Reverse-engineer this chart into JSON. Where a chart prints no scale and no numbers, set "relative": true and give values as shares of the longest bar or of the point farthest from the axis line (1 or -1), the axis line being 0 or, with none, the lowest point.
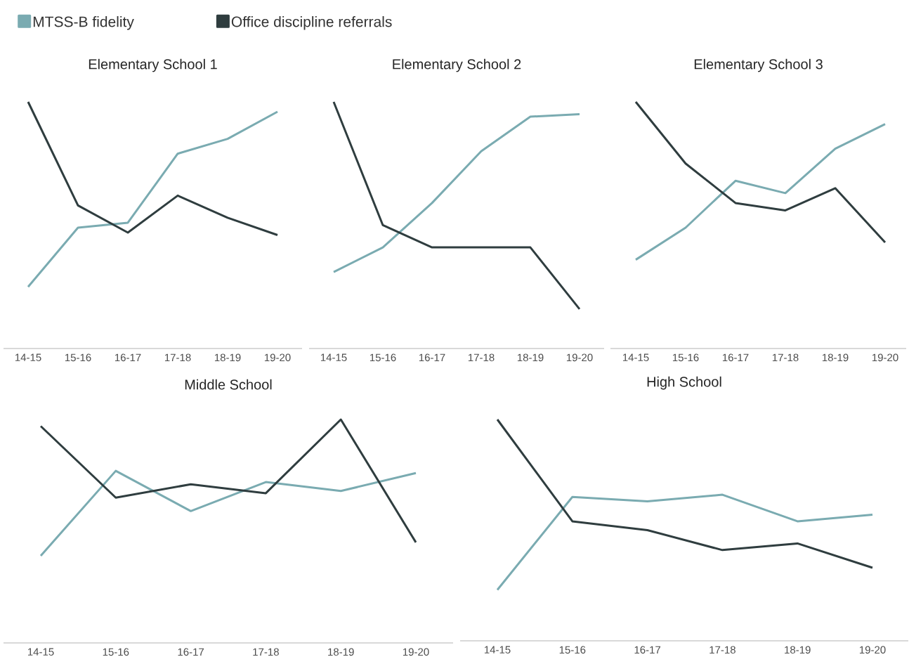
{
  "chart_data": [
    {
      "type": "line",
      "title": "Elementary School 1",
      "relative": true,
      "legend": "top",
      "categories": [
        "14-15",
        "15-16",
        "16-17",
        "17-18",
        "18-19",
        "19-20"
      ],
      "series": [
        {
          "name": "MTSS-B fidelity",
          "color": "#7aabb1",
          "values": [
            0.25,
            0.49,
            0.51,
            0.79,
            0.85,
            0.96
          ]
        },
        {
          "name": "Office discipline referrals",
          "color": "#2f3d3f",
          "values": [
            1,
            0.58,
            0.47,
            0.62,
            0.53,
            0.46
          ]
        }
      ]
    },
    {
      "type": "line",
      "title": "Elementary School 2",
      "relative": true,
      "categories": [
        "14-15",
        "15-16",
        "16-17",
        "17-18",
        "18-19",
        "19-20"
      ],
      "series": [
        {
          "color": "#7aabb1",
          "values": [
            0.31,
            0.41,
            0.59,
            0.8,
            0.94,
            0.95
          ]
        },
        {
          "color": "#2f3d3f",
          "values": [
            1,
            0.5,
            0.41,
            0.41,
            0.41,
            0.16
          ]
        }
      ]
    },
    {
      "type": "line",
      "title": "Elementary School 3",
      "relative": true,
      "categories": [
        "14-15",
        "15-16",
        "16-17",
        "17-18",
        "18-19",
        "19-20"
      ],
      "series": [
        {
          "color": "#7aabb1",
          "values": [
            0.36,
            0.49,
            0.68,
            0.63,
            0.81,
            0.91
          ]
        },
        {
          "color": "#2f3d3f",
          "values": [
            1,
            0.75,
            0.59,
            0.56,
            0.65,
            0.43
          ]
        }
      ]
    },
    {
      "type": "line",
      "title": "Middle School",
      "relative": true,
      "categories": [
        "14-15",
        "15-16",
        "16-17",
        "17-18",
        "18-19",
        "19-20"
      ],
      "series": [
        {
          "color": "#7aabb1",
          "values": [
            0.39,
            0.77,
            0.59,
            0.72,
            0.68,
            0.76
          ]
        },
        {
          "color": "#2f3d3f",
          "values": [
            0.97,
            0.65,
            0.71,
            0.67,
            1,
            0.45
          ]
        }
      ]
    },
    {
      "type": "line",
      "title": "High School",
      "relative": true,
      "categories": [
        "14-15",
        "15-16",
        "16-17",
        "17-18",
        "18-19",
        "19-20"
      ],
      "series": [
        {
          "color": "#7aabb1",
          "values": [
            0.23,
            0.65,
            0.63,
            0.66,
            0.54,
            0.57
          ]
        },
        {
          "color": "#2f3d3f",
          "values": [
            1,
            0.54,
            0.5,
            0.41,
            0.44,
            0.33
          ]
        }
      ]
    }
  ]
}
